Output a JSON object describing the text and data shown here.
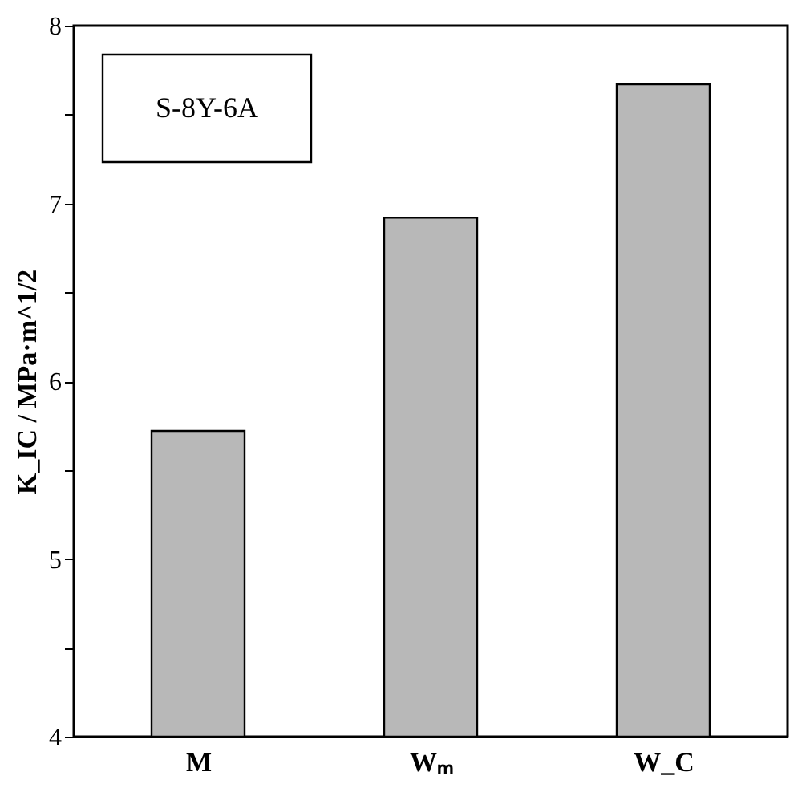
{
  "chart_data": {
    "type": "bar",
    "ylabel": "K_IC / MPa·m^1/2",
    "categories": [
      "M",
      "Wₘ",
      "W_C"
    ],
    "values": [
      5.72,
      6.92,
      7.67
    ],
    "color": "#b8b8b8",
    "ylim": [
      4,
      8
    ],
    "yticks": [
      4,
      {
        "value": 4.5,
        "label": null
      },
      5,
      {
        "value": 5.5,
        "label": null
      },
      6,
      {
        "value": 6.5,
        "label": null
      },
      7,
      {
        "value": 7.5,
        "label": null
      },
      8
    ],
    "annotations": [
      "S-8Y-6A"
    ],
    "grid": false
  }
}
